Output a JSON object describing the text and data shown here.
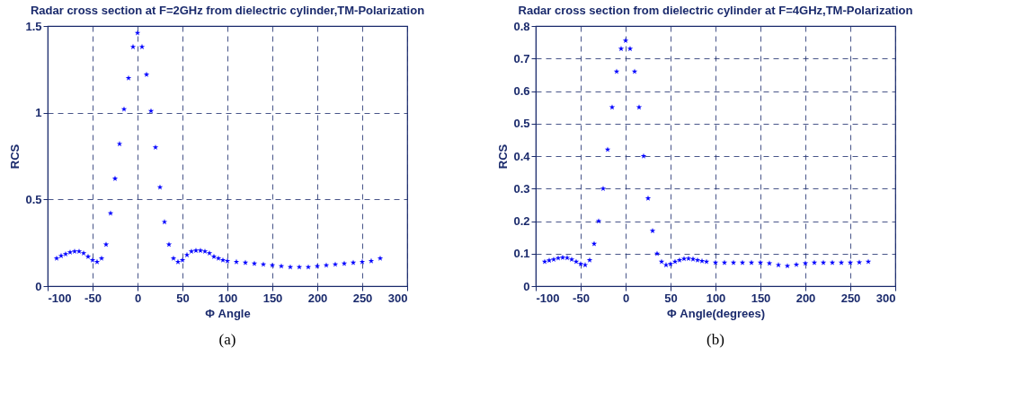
{
  "chart_data": [
    {
      "type": "scatter",
      "title": "Radar cross section at F=2GHz from dielectric cylinder,TM-Polarization",
      "xlabel": "Φ Angle",
      "ylabel": "RCS",
      "annotations": [
        "(a)"
      ],
      "marker": "star",
      "grid": true,
      "xlim": [
        -100,
        300
      ],
      "xticks": [
        -100,
        -50,
        0,
        50,
        100,
        150,
        200,
        250,
        300
      ],
      "ylim": [
        0,
        1.5
      ],
      "yticks": [
        0,
        0.5,
        1,
        1.5
      ],
      "series": [
        {
          "color": "#0000ff",
          "x": [
            -90,
            -85,
            -80,
            -75,
            -70,
            -65,
            -60,
            -55,
            -50,
            -45,
            -40,
            -35,
            -30,
            -25,
            -20,
            -15,
            -10,
            -5,
            0,
            5,
            10,
            15,
            20,
            25,
            30,
            35,
            40,
            45,
            50,
            55,
            60,
            65,
            70,
            75,
            80,
            85,
            90,
            95,
            100,
            110,
            120,
            130,
            140,
            150,
            160,
            170,
            180,
            190,
            200,
            210,
            220,
            230,
            240,
            250,
            260,
            270
          ],
          "values": [
            0.16,
            0.175,
            0.185,
            0.195,
            0.2,
            0.2,
            0.19,
            0.17,
            0.15,
            0.14,
            0.16,
            0.24,
            0.42,
            0.62,
            0.82,
            1.02,
            1.2,
            1.38,
            1.46,
            1.38,
            1.22,
            1.01,
            0.8,
            0.57,
            0.37,
            0.24,
            0.16,
            0.14,
            0.15,
            0.18,
            0.2,
            0.205,
            0.205,
            0.2,
            0.19,
            0.17,
            0.16,
            0.15,
            0.145,
            0.14,
            0.135,
            0.13,
            0.125,
            0.12,
            0.115,
            0.11,
            0.11,
            0.11,
            0.115,
            0.12,
            0.125,
            0.13,
            0.135,
            0.14,
            0.145,
            0.16
          ]
        }
      ]
    },
    {
      "type": "scatter",
      "title": "Radar cross section from dielectric cylinder at F=4GHz,TM-Polarization",
      "xlabel": "Φ Angle(degrees)",
      "ylabel": "RCS",
      "annotations": [
        "(b)"
      ],
      "marker": "star",
      "grid": true,
      "xlim": [
        -100,
        300
      ],
      "xticks": [
        -100,
        -50,
        0,
        50,
        100,
        150,
        200,
        250,
        300
      ],
      "ylim": [
        0,
        0.8
      ],
      "yticks": [
        0,
        0.1,
        0.2,
        0.3,
        0.4,
        0.5,
        0.6,
        0.7,
        0.8
      ],
      "series": [
        {
          "color": "#0000ff",
          "x": [
            -90,
            -85,
            -80,
            -75,
            -70,
            -65,
            -60,
            -55,
            -50,
            -45,
            -40,
            -35,
            -30,
            -25,
            -20,
            -15,
            -10,
            -5,
            0,
            5,
            10,
            15,
            20,
            25,
            30,
            35,
            40,
            45,
            50,
            55,
            60,
            65,
            70,
            75,
            80,
            85,
            90,
            100,
            110,
            120,
            130,
            140,
            150,
            160,
            170,
            180,
            190,
            200,
            210,
            220,
            230,
            240,
            250,
            260,
            270
          ],
          "values": [
            0.075,
            0.079,
            0.082,
            0.086,
            0.088,
            0.087,
            0.082,
            0.075,
            0.068,
            0.065,
            0.08,
            0.13,
            0.2,
            0.3,
            0.42,
            0.55,
            0.66,
            0.73,
            0.755,
            0.73,
            0.66,
            0.55,
            0.4,
            0.27,
            0.17,
            0.1,
            0.075,
            0.065,
            0.068,
            0.075,
            0.08,
            0.084,
            0.085,
            0.083,
            0.08,
            0.077,
            0.075,
            0.072,
            0.072,
            0.072,
            0.072,
            0.072,
            0.072,
            0.07,
            0.065,
            0.062,
            0.066,
            0.07,
            0.072,
            0.072,
            0.072,
            0.072,
            0.072,
            0.073,
            0.075
          ]
        }
      ]
    }
  ]
}
